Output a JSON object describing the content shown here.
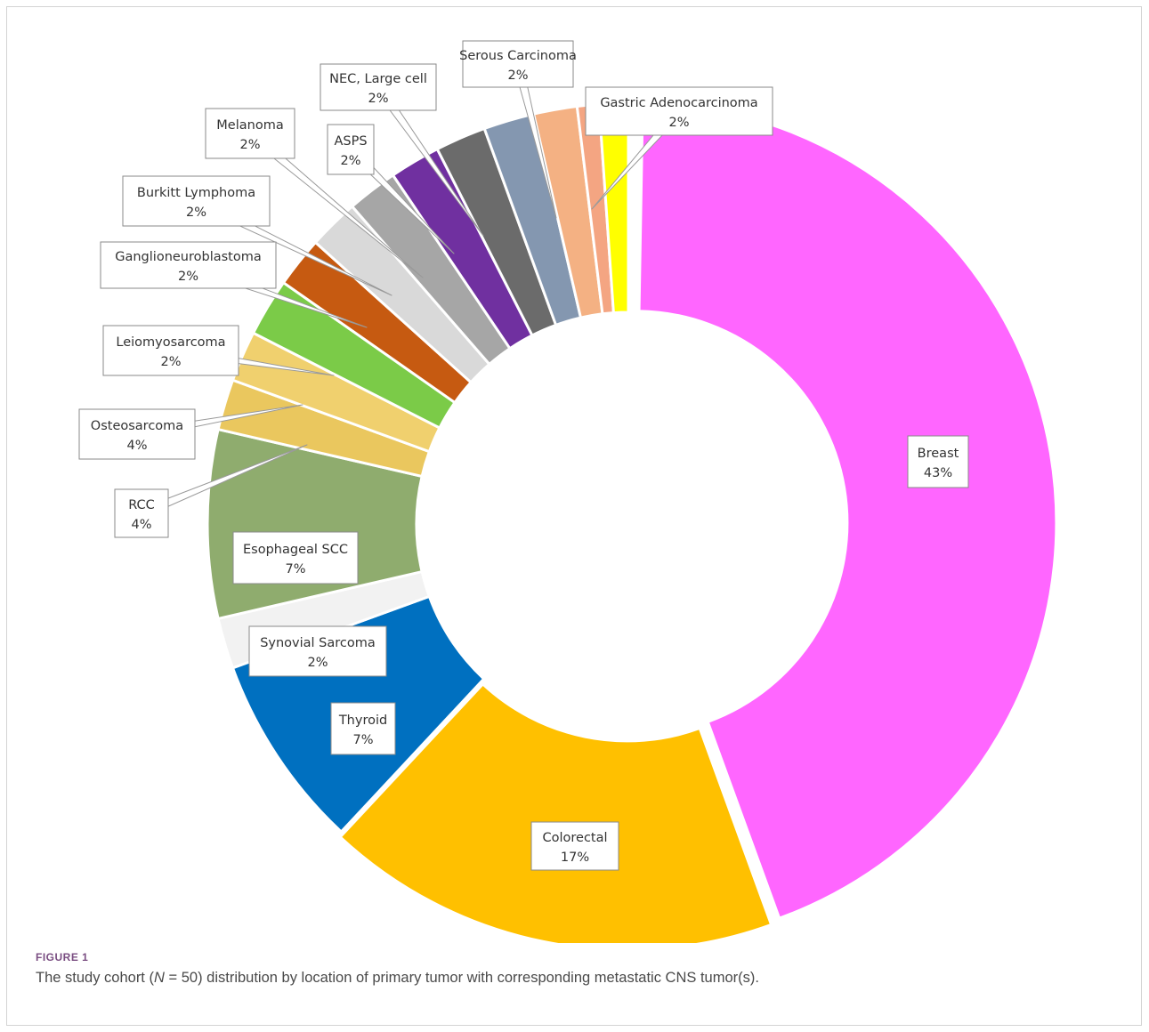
{
  "chart_data": {
    "type": "pie",
    "donut": true,
    "slices": [
      {
        "name": "Breast",
        "pct_label": "43%",
        "value": 43,
        "color": "#FF66FF"
      },
      {
        "name": "Colorectal",
        "pct_label": "17%",
        "value": 17,
        "color": "#FFC000"
      },
      {
        "name": "Thyroid",
        "pct_label": "7%",
        "value": 7,
        "color": "#0070C0"
      },
      {
        "name": "Synovial Sarcoma",
        "pct_label": "2%",
        "value": 2,
        "color": "#F2F2F2"
      },
      {
        "name": "Esophageal SCC",
        "pct_label": "7%",
        "value": 7,
        "color": "#8FAC6E"
      },
      {
        "name": "RCC",
        "pct_label": "4%",
        "value": 4,
        "color": "#EAC75E"
      },
      {
        "name": "Osteosarcoma",
        "pct_label": "4%",
        "value": 4,
        "color": "#F0D06E"
      },
      {
        "name": "Leiomyosarcoma",
        "pct_label": "2%",
        "value": 2,
        "color": "#7BCB48"
      },
      {
        "name": "Ganglioneuroblastoma",
        "pct_label": "2%",
        "value": 2,
        "color": "#C65A11"
      },
      {
        "name": "Burkitt Lymphoma",
        "pct_label": "2%",
        "value": 2,
        "color": "#D9D9D9"
      },
      {
        "name": "Melanoma",
        "pct_label": "2%",
        "value": 2,
        "color": "#A6A6A6"
      },
      {
        "name": "ASPS",
        "pct_label": "2%",
        "value": 2,
        "color": "#7030A0"
      },
      {
        "name": "NEC, Large cell",
        "pct_label": "2%",
        "value": 2,
        "color": "#6B6B6B"
      },
      {
        "name": "",
        "pct_label": "",
        "value": 2,
        "color": "#8497B0"
      },
      {
        "name": "Serous Carcinoma",
        "pct_label": "2%",
        "value": 2,
        "color": "#F4B183"
      },
      {
        "name": "",
        "pct_label": "",
        "value": 1,
        "color": "#F4A582"
      },
      {
        "name": "Gastric Adenocarcinoma",
        "pct_label": "2%",
        "value": 2,
        "color": "#FFFF00"
      }
    ]
  },
  "caption": {
    "label": "FIGURE 1",
    "text_before": "The study cohort (",
    "text_italic": "N",
    "text_after": " = 50) distribution by location of primary tumor with corresponding metastatic CNS tumor(s)."
  }
}
